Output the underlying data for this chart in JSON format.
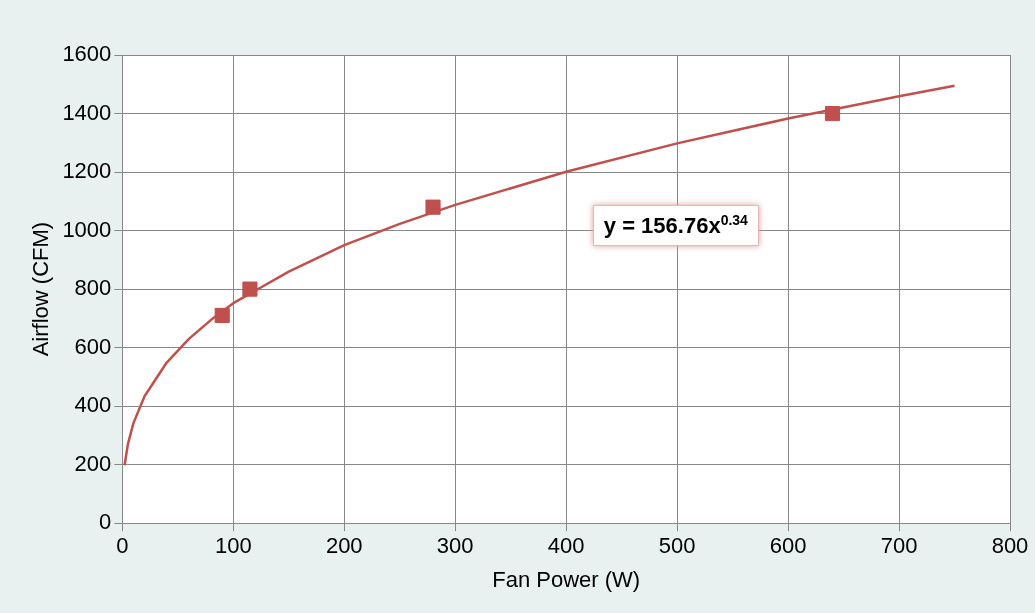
{
  "chart_data": {
    "type": "scatter",
    "xlabel": "Fan Power (W)",
    "ylabel": "Airflow (CFM)",
    "xlim": [
      0,
      800
    ],
    "xticks": [
      0,
      100,
      200,
      300,
      400,
      500,
      600,
      700,
      800
    ],
    "ylim": [
      0,
      1600
    ],
    "yticks": [
      0,
      200,
      400,
      600,
      800,
      1000,
      1200,
      1400,
      1600
    ],
    "grid": true,
    "legend": false,
    "annotations": [
      "y = 156.76x$^{0.34}$"
    ],
    "series": [
      {
        "color": "#c0504d",
        "marker": "square",
        "x": [
          90,
          115,
          280,
          640
        ],
        "values": [
          710,
          800,
          1080,
          1400
        ]
      },
      {
        "type": "line",
        "color": "#c0504d",
        "marker": "none",
        "x": [
          2,
          5,
          10,
          20,
          40,
          60,
          80,
          100,
          150,
          200,
          250,
          300,
          400,
          500,
          600,
          700,
          750
        ],
        "values": [
          198,
          270,
          342,
          434,
          549,
          630,
          695,
          752,
          860,
          950,
          1023,
          1088,
          1201,
          1298,
          1383,
          1459,
          1495
        ]
      }
    ]
  }
}
